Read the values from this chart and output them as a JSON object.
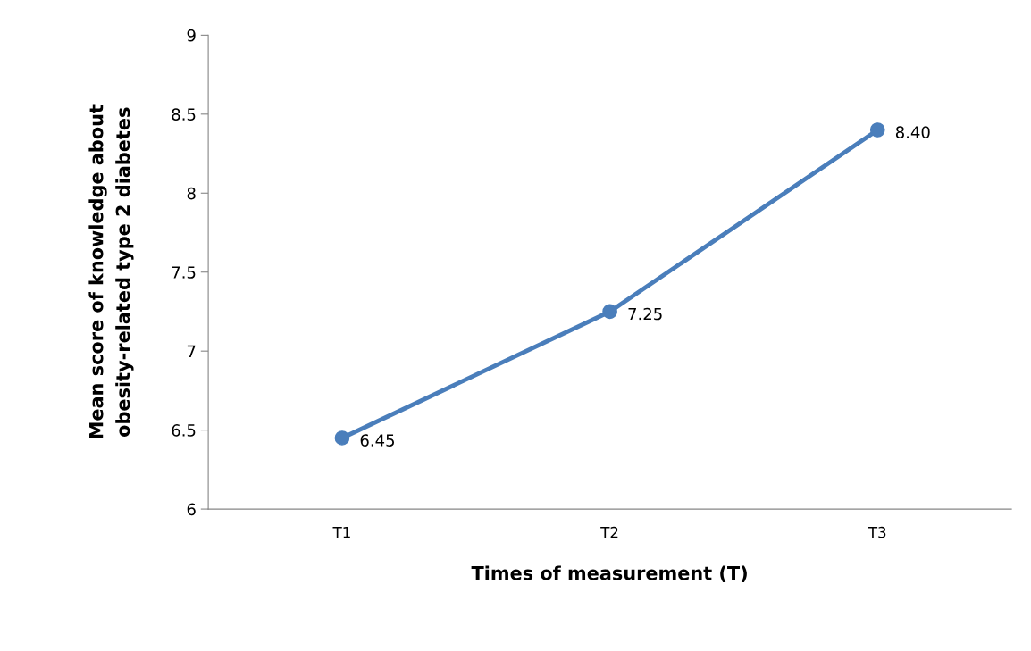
{
  "chart_data": {
    "type": "line",
    "xlabel": "Times of measurement (T)",
    "ylabel": "Mean score of knowledge about\nobesity-related type 2 diabetes",
    "categories": [
      "T1",
      "T2",
      "T3"
    ],
    "series": [
      {
        "color": "#4a7ebb",
        "values": [
          6.45,
          7.25,
          8.4
        ],
        "value_labels": [
          "6.45",
          "7.25",
          "8.40"
        ]
      }
    ],
    "ylim": [
      6,
      9
    ],
    "yticks": [
      6,
      6.5,
      7,
      7.5,
      8,
      8.5,
      9
    ],
    "grid": false,
    "legend": false,
    "marker": "circle",
    "line_style": "solid"
  }
}
